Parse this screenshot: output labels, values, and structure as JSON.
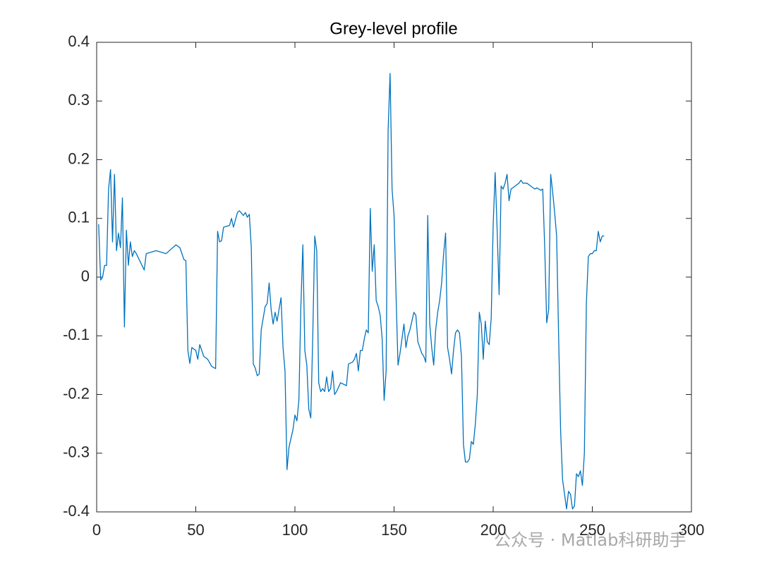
{
  "chart_data": {
    "type": "line",
    "title": "Grey-level profile",
    "series": [
      {
        "color": "#0072bd",
        "x": [
          1,
          2,
          3,
          4,
          5,
          6,
          7,
          8,
          9,
          10,
          11,
          12,
          13,
          14,
          15,
          16,
          17,
          18,
          19,
          20,
          24,
          25,
          30,
          35,
          40,
          42,
          44,
          45,
          46,
          47,
          48,
          50,
          51,
          52,
          54,
          56,
          58,
          60,
          61,
          62,
          63,
          64,
          67,
          68,
          69,
          71,
          72,
          74,
          75,
          76,
          77,
          78,
          79,
          80,
          81,
          82,
          83,
          85,
          86,
          87,
          88,
          89,
          90,
          91,
          93,
          94,
          95,
          96,
          97,
          99,
          100,
          101,
          102,
          103,
          104,
          105,
          106,
          107,
          108,
          109,
          110,
          111,
          112,
          113,
          114,
          115,
          116,
          117,
          118,
          119,
          120,
          121,
          123,
          126,
          127,
          129,
          130,
          131,
          132,
          133,
          134,
          135,
          136,
          137,
          138,
          139,
          140,
          141,
          142,
          143,
          144,
          145,
          146,
          147,
          148,
          149,
          150,
          151,
          152,
          153,
          154,
          155,
          156,
          157,
          158,
          159,
          160,
          161,
          162,
          163,
          164,
          165,
          166,
          167,
          168,
          169,
          170,
          171,
          172,
          173,
          174,
          175,
          176,
          177,
          178,
          179,
          180,
          181,
          182,
          183,
          184,
          185,
          186,
          187,
          188,
          189,
          190,
          191,
          192,
          193,
          194,
          195,
          196,
          197,
          198,
          199,
          200,
          201,
          202,
          203,
          204,
          205,
          206,
          207,
          208,
          209,
          211,
          213,
          214,
          215,
          217,
          219,
          221,
          222,
          224,
          225,
          226,
          227,
          228,
          229,
          230,
          231,
          232,
          233,
          234,
          235,
          236,
          237,
          238,
          239,
          240,
          241,
          242,
          243,
          244,
          245,
          246,
          247,
          248,
          249,
          250,
          251,
          252,
          253,
          254,
          255,
          256
        ],
        "values": [
          0.09,
          -0.005,
          0.0,
          0.02,
          0.02,
          0.15,
          0.183,
          0.06,
          0.175,
          0.045,
          0.075,
          0.05,
          0.135,
          -0.085,
          0.08,
          0.02,
          0.06,
          0.035,
          0.045,
          0.04,
          0.012,
          0.04,
          0.045,
          0.04,
          0.055,
          0.05,
          0.03,
          0.028,
          -0.125,
          -0.147,
          -0.12,
          -0.125,
          -0.14,
          -0.115,
          -0.135,
          -0.14,
          -0.152,
          -0.156,
          0.078,
          0.06,
          0.062,
          0.085,
          0.088,
          0.1,
          0.085,
          0.11,
          0.113,
          0.105,
          0.11,
          0.102,
          0.107,
          0.05,
          -0.148,
          -0.155,
          -0.168,
          -0.165,
          -0.09,
          -0.05,
          -0.045,
          -0.01,
          -0.055,
          -0.08,
          -0.06,
          -0.075,
          -0.035,
          -0.12,
          -0.16,
          -0.328,
          -0.29,
          -0.26,
          -0.235,
          -0.245,
          -0.21,
          -0.05,
          0.055,
          -0.125,
          -0.15,
          -0.225,
          -0.24,
          -0.1,
          0.07,
          0.045,
          -0.18,
          -0.195,
          -0.19,
          -0.195,
          -0.17,
          -0.195,
          -0.19,
          -0.16,
          -0.2,
          -0.195,
          -0.18,
          -0.185,
          -0.148,
          -0.145,
          -0.14,
          -0.13,
          -0.16,
          -0.125,
          -0.125,
          -0.105,
          -0.09,
          -0.095,
          0.117,
          0.01,
          0.055,
          -0.04,
          -0.05,
          -0.065,
          -0.105,
          -0.21,
          -0.16,
          0.25,
          0.347,
          0.15,
          0.105,
          -0.03,
          -0.15,
          -0.13,
          -0.105,
          -0.08,
          -0.12,
          -0.1,
          -0.09,
          -0.075,
          -0.06,
          -0.065,
          -0.11,
          -0.12,
          -0.13,
          -0.135,
          -0.145,
          0.105,
          -0.08,
          -0.12,
          -0.15,
          -0.09,
          -0.06,
          -0.04,
          -0.01,
          0.04,
          0.075,
          -0.12,
          -0.14,
          -0.165,
          -0.125,
          -0.095,
          -0.09,
          -0.095,
          -0.135,
          -0.285,
          -0.315,
          -0.315,
          -0.31,
          -0.28,
          -0.285,
          -0.25,
          -0.2,
          -0.06,
          -0.08,
          -0.14,
          -0.075,
          -0.11,
          -0.115,
          -0.07,
          0.09,
          0.178,
          0.08,
          -0.03,
          0.155,
          0.15,
          0.16,
          0.175,
          0.13,
          0.15,
          0.155,
          0.16,
          0.165,
          0.16,
          0.16,
          0.155,
          0.15,
          0.152,
          0.148,
          0.15,
          0.05,
          -0.078,
          -0.055,
          0.175,
          0.145,
          0.11,
          0.07,
          -0.1,
          -0.26,
          -0.345,
          -0.37,
          -0.395,
          -0.365,
          -0.37,
          -0.395,
          -0.39,
          -0.335,
          -0.34,
          -0.33,
          -0.355,
          -0.3,
          -0.045,
          0.035,
          0.04,
          0.04,
          0.045,
          0.045,
          0.078,
          0.06,
          0.07,
          0.07
        ]
      }
    ],
    "xlim": [
      0,
      300
    ],
    "xticks": [
      0,
      50,
      100,
      150,
      200,
      250,
      300
    ],
    "ylim": [
      -0.4,
      0.4
    ],
    "yticks": [
      -0.4,
      -0.3,
      -0.2,
      -0.1,
      0,
      0.1,
      0.2,
      0.3,
      0.4
    ],
    "grid": false
  },
  "watermark": "公众号 · Matlab科研助手"
}
